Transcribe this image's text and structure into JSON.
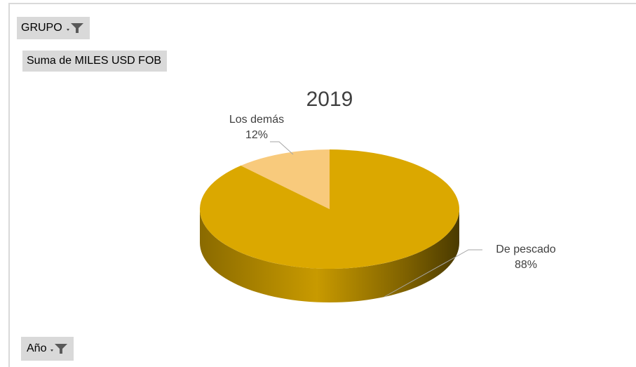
{
  "filters": {
    "grupo_label": "GRUPO",
    "ano_label": "Año",
    "icon": "filter-dropdown-icon"
  },
  "value_field": "Suma de MILES USD FOB",
  "chart_data": {
    "type": "pie",
    "title": "2019",
    "slices": [
      {
        "label": "De pescado",
        "value": 88,
        "display": "88%",
        "color": "#dba800"
      },
      {
        "label": "Los demás",
        "value": 12,
        "display": "12%",
        "color": "#f8ca7c"
      }
    ],
    "three_d": true,
    "legend": "none"
  },
  "colors": {
    "field_button_bg": "#d9d9d9",
    "frame": "#d9d9d9",
    "label_text": "#404040"
  }
}
